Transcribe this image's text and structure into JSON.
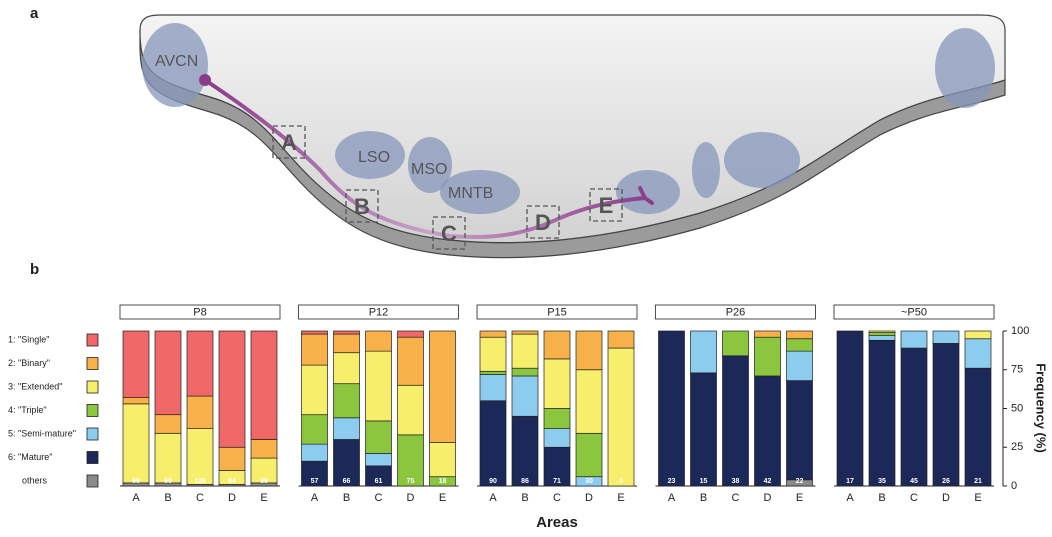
{
  "panel_a": {
    "label": "a",
    "regions": [
      "AVCN",
      "LSO",
      "MSO",
      "MNTB"
    ],
    "sites": [
      "A",
      "B",
      "C",
      "D",
      "E"
    ]
  },
  "chart_data": {
    "type": "bar",
    "stacked": true,
    "panel_label": "b",
    "xlabel": "Areas",
    "ylabel": "Frequency (%)",
    "ylim": [
      0,
      100
    ],
    "yticks": [
      0,
      25,
      50,
      75,
      100
    ],
    "legend": [
      {
        "name": "others",
        "color": "#8a8a8a"
      },
      {
        "name": "6: \"Mature\"",
        "color": "#1c2858"
      },
      {
        "name": "5: \"Semi-mature\"",
        "color": "#8ccdef"
      },
      {
        "name": "4: \"Triple\"",
        "color": "#8cc63f"
      },
      {
        "name": "3: \"Extended\"",
        "color": "#f7ee6b"
      },
      {
        "name": "2: \"Binary\"",
        "color": "#f8b04b"
      },
      {
        "name": "1: \"Single\"",
        "color": "#f06767"
      }
    ],
    "panels": [
      {
        "title": "P8",
        "categories": [
          "A",
          "B",
          "C",
          "D",
          "E"
        ],
        "n": [
          69,
          60,
          126,
          94,
          39
        ],
        "series": [
          {
            "values": [
              2,
              2,
              1,
              1,
              2
            ]
          },
          {
            "values": [
              0,
              0,
              0,
              0,
              0
            ]
          },
          {
            "values": [
              0,
              0,
              0,
              0,
              0
            ]
          },
          {
            "values": [
              0,
              0,
              0,
              0,
              0
            ]
          },
          {
            "values": [
              51,
              32,
              36,
              9,
              16
            ]
          },
          {
            "values": [
              4,
              12,
              21,
              15,
              12
            ]
          },
          {
            "values": [
              43,
              54,
              42,
              75,
              70
            ]
          }
        ]
      },
      {
        "title": "P12",
        "categories": [
          "A",
          "B",
          "C",
          "D",
          "E"
        ],
        "n": [
          57,
          66,
          61,
          75,
          18
        ],
        "series": [
          {
            "values": [
              0,
              0,
              0,
              0,
              0
            ]
          },
          {
            "values": [
              16,
              30,
              13,
              0,
              0
            ]
          },
          {
            "values": [
              11,
              14,
              8,
              0,
              0
            ]
          },
          {
            "values": [
              19,
              22,
              21,
              33,
              6
            ]
          },
          {
            "values": [
              32,
              20,
              45,
              32,
              22
            ]
          },
          {
            "values": [
              20,
              12,
              13,
              31,
              72
            ]
          },
          {
            "values": [
              2,
              2,
              0,
              4,
              0
            ]
          }
        ]
      },
      {
        "title": "P15",
        "categories": [
          "A",
          "B",
          "C",
          "D",
          "E"
        ],
        "n": [
          90,
          86,
          71,
          30,
          3
        ],
        "series": [
          {
            "values": [
              0,
              0,
              0,
              0,
              0
            ]
          },
          {
            "values": [
              55,
              45,
              25,
              0,
              0
            ]
          },
          {
            "values": [
              17,
              26,
              12,
              6,
              0
            ]
          },
          {
            "values": [
              2,
              5,
              13,
              28,
              0
            ]
          },
          {
            "values": [
              22,
              22,
              32,
              41,
              89
            ]
          },
          {
            "values": [
              4,
              2,
              18,
              25,
              11
            ]
          },
          {
            "values": [
              0,
              0,
              0,
              0,
              0
            ]
          }
        ]
      },
      {
        "title": "P26",
        "categories": [
          "A",
          "B",
          "C",
          "D",
          "E"
        ],
        "n": [
          23,
          15,
          38,
          42,
          22
        ],
        "series": [
          {
            "values": [
              0,
              0,
              0,
              0,
              4
            ]
          },
          {
            "values": [
              100,
              73,
              84,
              71,
              64
            ]
          },
          {
            "values": [
              0,
              27,
              0,
              0,
              19
            ]
          },
          {
            "values": [
              0,
              0,
              16,
              25,
              8
            ]
          },
          {
            "values": [
              0,
              0,
              0,
              0,
              0
            ]
          },
          {
            "values": [
              0,
              0,
              0,
              4,
              5
            ]
          },
          {
            "values": [
              0,
              0,
              0,
              0,
              0
            ]
          }
        ]
      },
      {
        "title": "~P50",
        "categories": [
          "A",
          "B",
          "C",
          "D",
          "E"
        ],
        "n": [
          17,
          35,
          45,
          26,
          21
        ],
        "series": [
          {
            "values": [
              0,
              0,
              0,
              0,
              0
            ]
          },
          {
            "values": [
              100,
              94,
              89,
              92,
              76
            ]
          },
          {
            "values": [
              0,
              3,
              11,
              8,
              19
            ]
          },
          {
            "values": [
              0,
              2,
              0,
              0,
              0
            ]
          },
          {
            "values": [
              0,
              1,
              0,
              0,
              5
            ]
          },
          {
            "values": [
              0,
              0,
              0,
              0,
              0
            ]
          },
          {
            "values": [
              0,
              0,
              0,
              0,
              0
            ]
          }
        ]
      }
    ]
  }
}
